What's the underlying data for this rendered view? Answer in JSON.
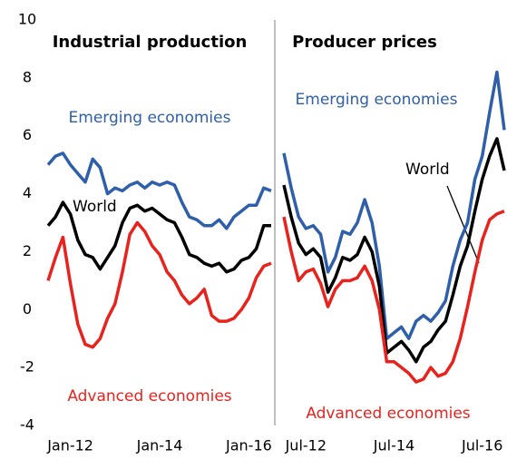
{
  "chart_data": [
    {
      "type": "line",
      "title": "Industrial production",
      "categories": [
        null,
        null,
        null,
        "Jan-12",
        null,
        null,
        null,
        null,
        null,
        null,
        null,
        null,
        null,
        null,
        null,
        "Jan-14",
        null,
        null,
        null,
        null,
        null,
        null,
        null,
        null,
        null,
        null,
        null,
        "Jan-16",
        null,
        null,
        null
      ],
      "ylim": [
        -4,
        10
      ],
      "yticks": [
        -4,
        -2,
        0,
        2,
        4,
        6,
        8,
        10
      ],
      "series": [
        {
          "name": "Emerging economies",
          "color": "#2f5fab",
          "values": [
            5.0,
            5.3,
            5.4,
            5.0,
            4.7,
            4.4,
            5.2,
            4.9,
            4.0,
            4.2,
            4.1,
            4.3,
            4.4,
            4.2,
            4.4,
            4.3,
            4.4,
            4.3,
            3.7,
            3.2,
            3.1,
            2.9,
            2.9,
            3.1,
            2.8,
            3.2,
            3.4,
            3.6,
            3.6,
            4.2,
            4.1
          ]
        },
        {
          "name": "World",
          "color": "#000000",
          "values": [
            2.9,
            3.2,
            3.7,
            3.3,
            2.4,
            1.9,
            1.8,
            1.4,
            1.8,
            2.2,
            3.0,
            3.5,
            3.6,
            3.4,
            3.5,
            3.3,
            3.1,
            3.0,
            2.5,
            1.9,
            1.8,
            1.6,
            1.5,
            1.6,
            1.3,
            1.4,
            1.7,
            1.8,
            2.1,
            2.9,
            2.9
          ]
        },
        {
          "name": "Advanced economies",
          "color": "#e8231d",
          "values": [
            1.0,
            1.8,
            2.5,
            0.9,
            -0.5,
            -1.2,
            -1.3,
            -1.0,
            -0.3,
            0.2,
            1.3,
            2.6,
            3.0,
            2.7,
            2.2,
            1.9,
            1.3,
            1.0,
            0.5,
            0.2,
            0.4,
            0.7,
            -0.2,
            -0.4,
            -0.4,
            -0.3,
            0.0,
            0.4,
            1.1,
            1.5,
            1.6
          ]
        }
      ]
    },
    {
      "type": "line",
      "title": "Producer prices",
      "categories": [
        null,
        null,
        null,
        "Jul-12",
        null,
        null,
        null,
        null,
        null,
        null,
        null,
        null,
        null,
        null,
        null,
        "Jul-14",
        null,
        null,
        null,
        null,
        null,
        null,
        null,
        null,
        null,
        null,
        null,
        "Jul-16",
        null,
        null,
        null
      ],
      "ylim": [
        -4,
        10
      ],
      "series": [
        {
          "name": "Emerging economies",
          "color": "#2f5fab",
          "values": [
            5.4,
            4.2,
            3.2,
            2.8,
            2.9,
            2.6,
            1.3,
            1.8,
            2.7,
            2.6,
            3.0,
            3.8,
            3.0,
            1.5,
            -1.0,
            -0.8,
            -0.6,
            -1.0,
            -0.4,
            -0.2,
            -0.4,
            -0.1,
            0.3,
            1.5,
            2.4,
            3.0,
            4.5,
            5.3,
            6.8,
            8.2,
            6.2
          ]
        },
        {
          "name": "World",
          "color": "#000000",
          "values": [
            4.3,
            3.2,
            2.3,
            1.9,
            2.1,
            1.8,
            0.6,
            1.1,
            1.8,
            1.7,
            1.9,
            2.5,
            2.0,
            0.8,
            -1.5,
            -1.3,
            -1.1,
            -1.4,
            -1.8,
            -1.3,
            -1.1,
            -0.7,
            -0.4,
            0.5,
            1.5,
            2.2,
            3.4,
            4.5,
            5.3,
            5.9,
            4.8
          ]
        },
        {
          "name": "Advanced economies",
          "color": "#e8231d",
          "values": [
            3.2,
            2.0,
            1.0,
            1.3,
            1.4,
            0.9,
            0.1,
            0.7,
            1.0,
            1.0,
            1.1,
            1.5,
            1.0,
            0.0,
            -1.8,
            -1.8,
            -2.0,
            -2.2,
            -2.5,
            -2.4,
            -2.0,
            -2.3,
            -2.2,
            -1.8,
            -1.0,
            0.1,
            1.3,
            2.4,
            3.1,
            3.3,
            3.4
          ]
        }
      ]
    }
  ]
}
